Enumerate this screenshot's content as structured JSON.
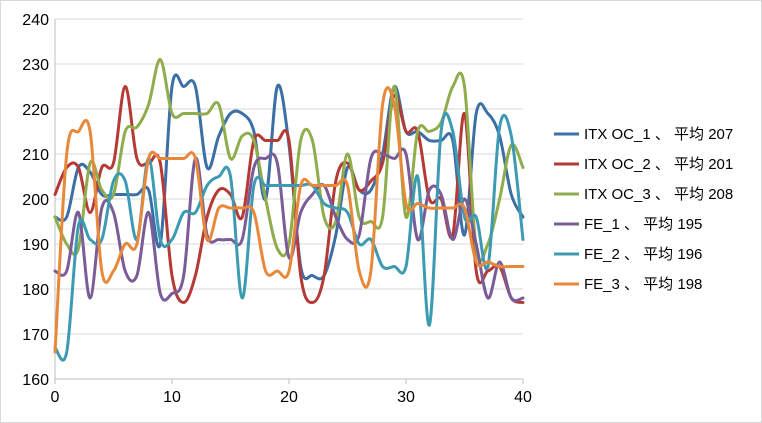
{
  "chart_data": {
    "type": "line",
    "title": "",
    "xlabel": "",
    "ylabel": "",
    "xlim": [
      0,
      40
    ],
    "ylim": [
      160,
      240
    ],
    "x_ticks": [
      0,
      10,
      20,
      30,
      40
    ],
    "y_ticks": [
      160,
      170,
      180,
      190,
      200,
      210,
      220,
      230,
      240
    ],
    "grid": "horizontal",
    "legend_position": "right",
    "x": [
      0,
      1,
      2,
      3,
      4,
      5,
      6,
      7,
      8,
      9,
      10,
      11,
      12,
      13,
      14,
      15,
      16,
      17,
      18,
      19,
      20,
      21,
      22,
      23,
      24,
      25,
      26,
      27,
      28,
      29,
      30,
      31,
      32,
      33,
      34,
      35,
      36,
      37,
      38,
      39,
      40
    ],
    "series": [
      {
        "name": "ITX OC_1 、 平均 207",
        "color": "#3c6fa6",
        "values": [
          196,
          196,
          207,
          206,
          201,
          201,
          201,
          201,
          202,
          190,
          225,
          225,
          225,
          207,
          214,
          219,
          219,
          215,
          200,
          225,
          212,
          185,
          183,
          183,
          192,
          207,
          202,
          202,
          210,
          225,
          215,
          215,
          213,
          213,
          213,
          192,
          219,
          219,
          214,
          201,
          196
        ]
      },
      {
        "name": "ITX OC_2 、 平均 201",
        "color": "#b53a36",
        "values": [
          201,
          207,
          207,
          197,
          207,
          208,
          225,
          209,
          208,
          208,
          183,
          177,
          183,
          196,
          202,
          201,
          196,
          213,
          213,
          213,
          213,
          183,
          177,
          183,
          204,
          208,
          202,
          204,
          208,
          223,
          215,
          215,
          200,
          200,
          192,
          219,
          184,
          184,
          185,
          178,
          177
        ]
      },
      {
        "name": "ITX OC_3 、 平均 208",
        "color": "#8fad4c",
        "values": [
          196,
          190,
          189,
          208,
          202,
          201,
          215,
          216,
          221,
          231,
          219,
          219,
          219,
          219,
          221,
          209,
          214,
          213,
          200,
          189,
          190,
          213,
          213,
          196,
          195,
          210,
          196,
          195,
          196,
          225,
          196,
          215,
          215,
          217,
          225,
          225,
          189,
          190,
          200,
          212,
          207
        ]
      },
      {
        "name": "FE_1 、 平均 195",
        "color": "#7a5c99",
        "values": [
          184,
          184,
          197,
          178,
          198,
          197,
          184,
          183,
          197,
          179,
          179,
          183,
          209,
          192,
          191,
          191,
          191,
          207,
          209,
          208,
          187,
          197,
          201,
          203,
          196,
          191,
          192,
          209,
          210,
          209,
          210,
          191,
          202,
          201,
          191,
          200,
          190,
          178,
          186,
          178,
          178
        ]
      },
      {
        "name": "FE_2 、 平均 196",
        "color": "#3c9ab3",
        "values": [
          167,
          166,
          194,
          191,
          191,
          204,
          204,
          191,
          209,
          191,
          191,
          197,
          197,
          203,
          205,
          205,
          178,
          203,
          203,
          203,
          203,
          203,
          203,
          199,
          198,
          197,
          190,
          191,
          185,
          185,
          185,
          205,
          172,
          215,
          215,
          196,
          196,
          185,
          216,
          214,
          191
        ]
      },
      {
        "name": "FE_3 、 平均 198",
        "color": "#e8883a",
        "values": [
          166,
          210,
          215,
          215,
          184,
          184,
          190,
          190,
          209,
          209,
          209,
          209,
          209,
          191,
          198,
          198,
          198,
          197,
          184,
          184,
          184,
          203,
          203,
          203,
          203,
          203,
          184,
          184,
          221,
          221,
          199,
          199,
          198,
          198,
          198,
          198,
          186,
          186,
          185,
          185,
          185
        ]
      }
    ]
  }
}
